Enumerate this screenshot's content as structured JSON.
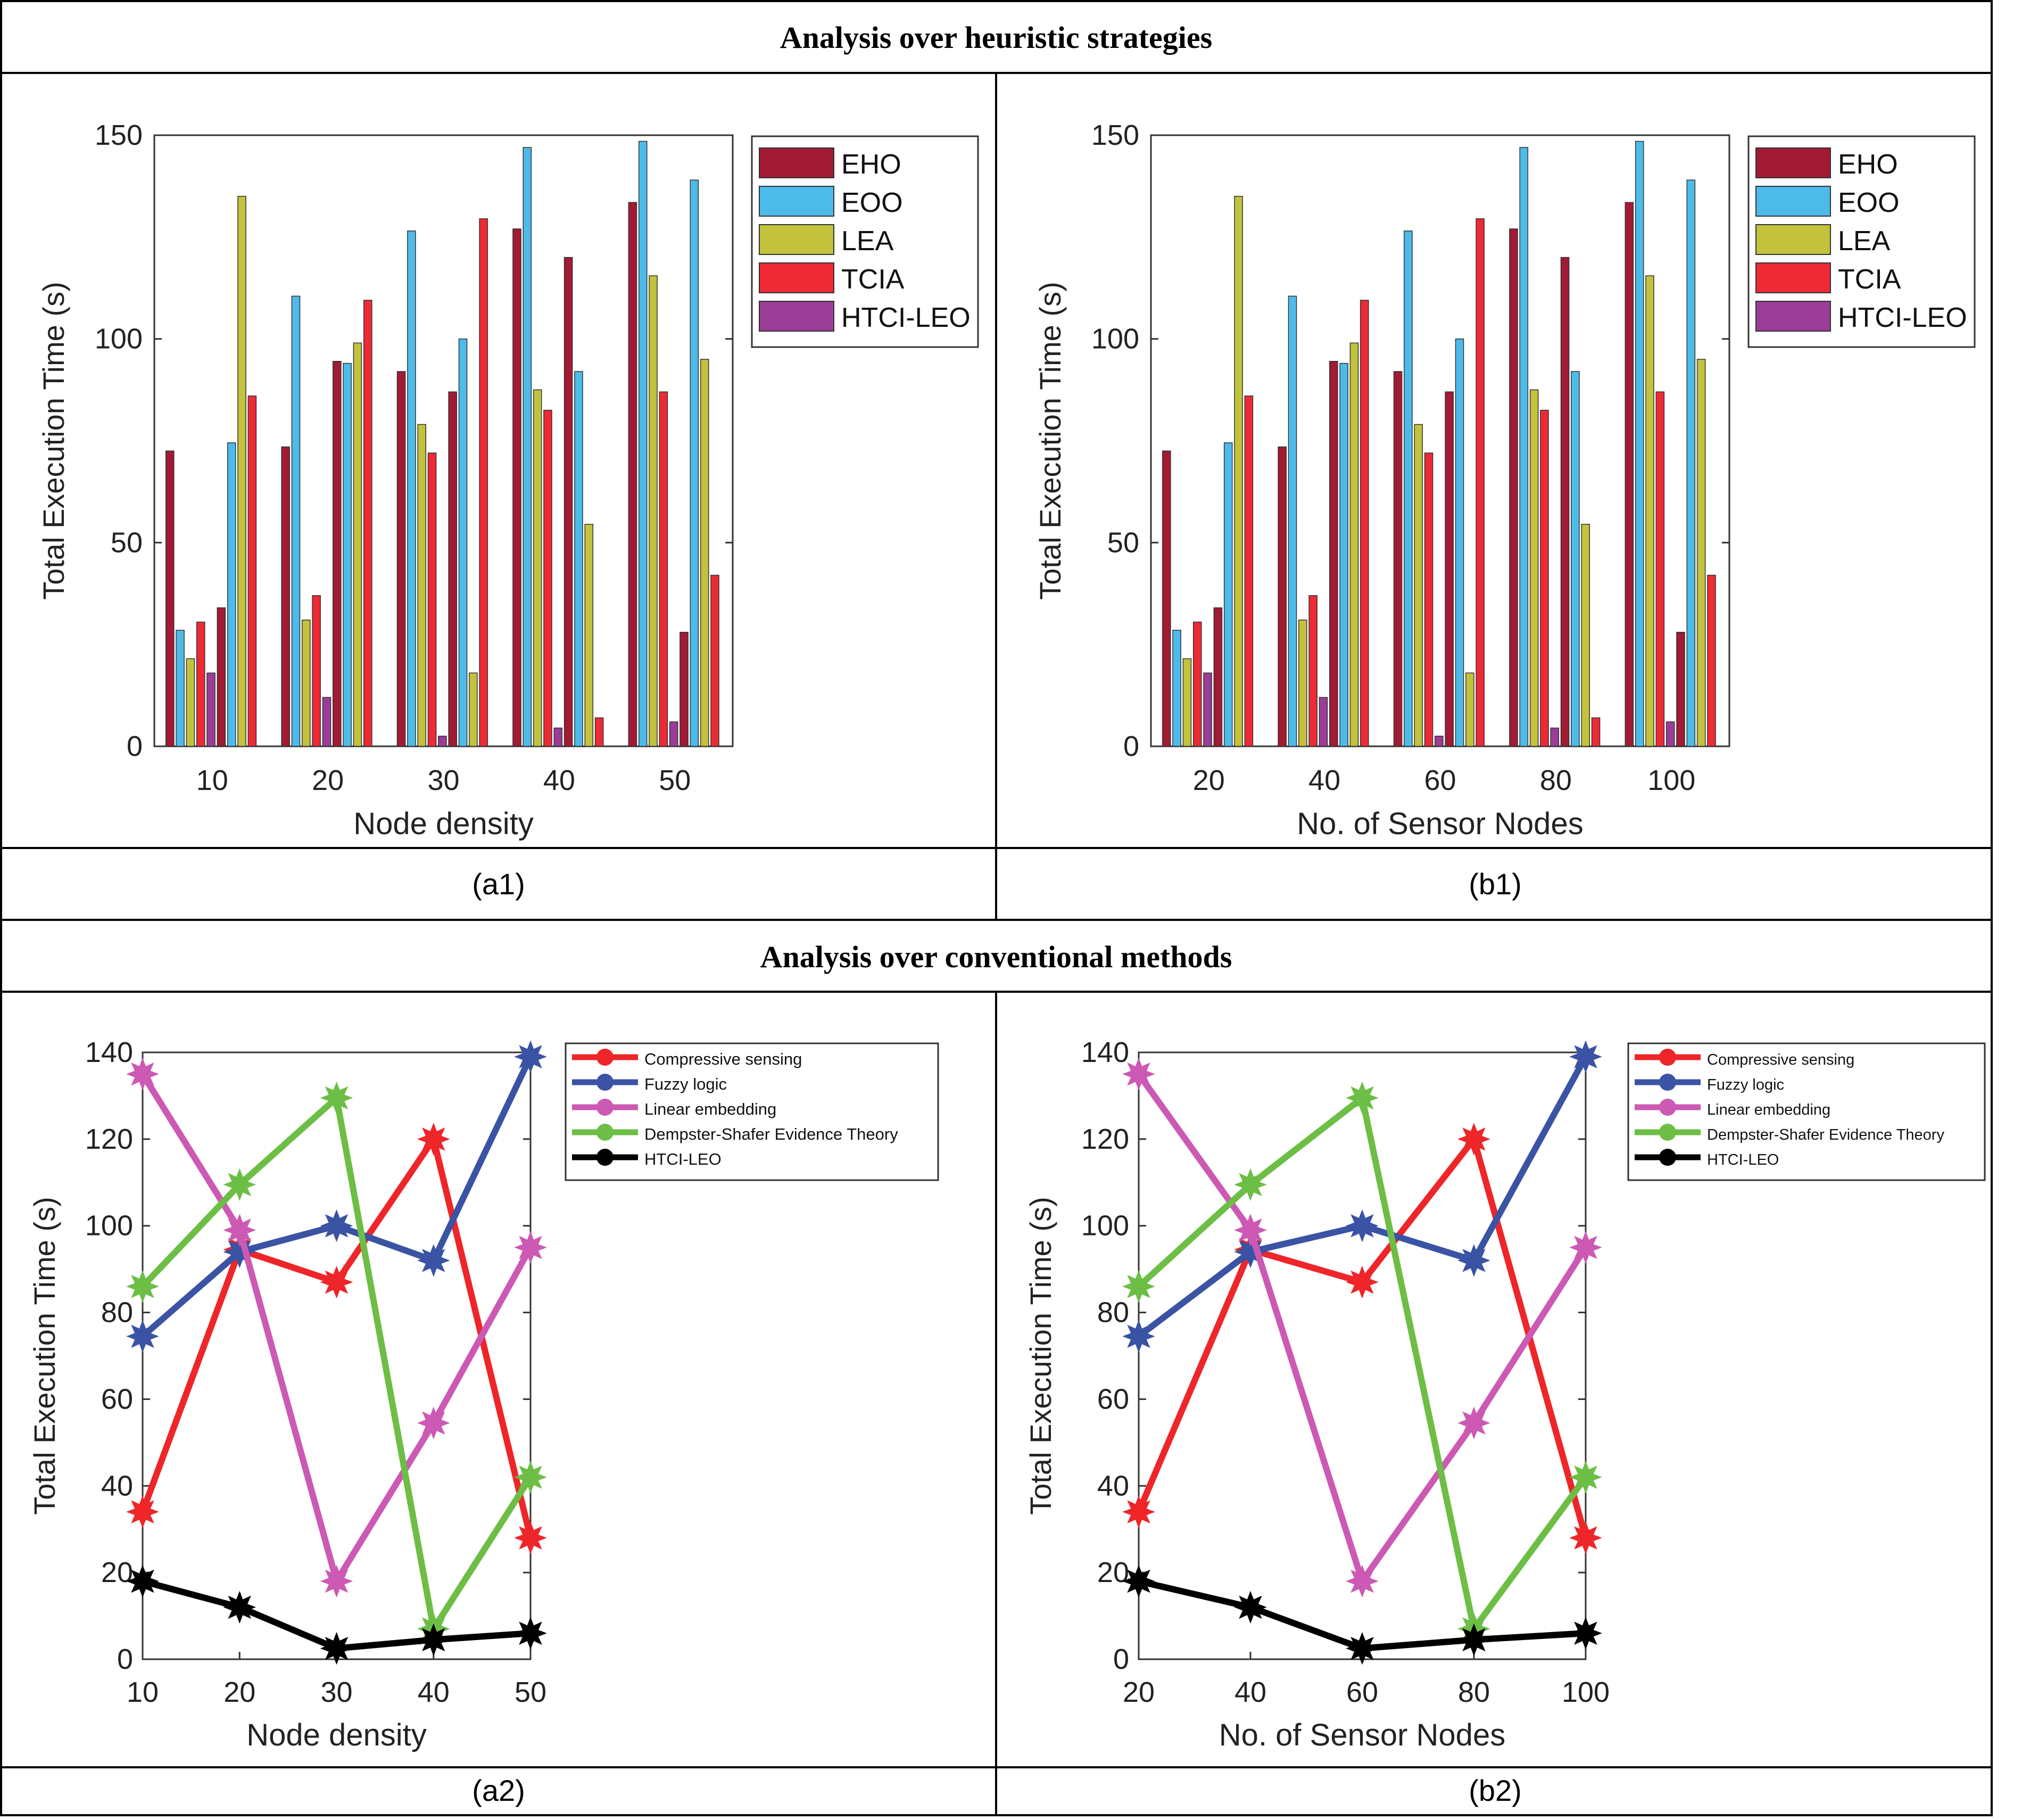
{
  "sections": [
    {
      "title": "Analysis over heuristic strategies"
    },
    {
      "title": "Analysis over conventional methods"
    }
  ],
  "panels": [
    {
      "caption": "(a1)"
    },
    {
      "caption": "(b1)"
    },
    {
      "caption": "(a2)"
    },
    {
      "caption": "(b2)"
    }
  ],
  "chart_data": [
    {
      "type": "bar",
      "panel": "(a1)",
      "xlabel": "Node density",
      "ylabel": "Total Execution Time (s)",
      "ylim": [
        0,
        150
      ],
      "yticks": [
        0,
        50,
        100,
        150
      ],
      "categories": [
        "10",
        "20",
        "30",
        "40",
        "50"
      ],
      "legend_position": "top-right",
      "series": [
        {
          "name": "EHO",
          "color": "#a21a33",
          "values": [
            72.5,
            73.5,
            92,
            127,
            133.5
          ]
        },
        {
          "name": "EOO",
          "color": "#4dbbe9",
          "values": [
            28.5,
            110.5,
            126.5,
            147,
            148.5
          ]
        },
        {
          "name": "LEA",
          "color": "#c2c23d",
          "values": [
            21.5,
            31,
            79,
            87.5,
            115.5
          ]
        },
        {
          "name": "TCIA",
          "color": "#ee2a35",
          "values": [
            30.5,
            37,
            72,
            82.5,
            87
          ]
        },
        {
          "name": "HTCI-LEO",
          "color": "#9b3d96",
          "values": [
            18,
            12,
            2.5,
            4.5,
            6
          ]
        },
        {
          "name": "",
          "color": "#a21a33",
          "values": [
            34,
            94.5,
            87,
            120,
            28
          ]
        },
        {
          "name": "",
          "color": "#4dbbe9",
          "values": [
            74.5,
            94,
            100,
            92,
            139
          ]
        },
        {
          "name": "",
          "color": "#c2c23d",
          "values": [
            135,
            99,
            18,
            54.5,
            95
          ]
        },
        {
          "name": "",
          "color": "#ee2a35",
          "values": [
            86,
            109.5,
            129.5,
            7,
            42
          ]
        }
      ]
    },
    {
      "type": "bar",
      "panel": "(b1)",
      "xlabel": "No. of Sensor Nodes",
      "ylabel": "Total Execution Time (s)",
      "ylim": [
        0,
        150
      ],
      "yticks": [
        0,
        50,
        100,
        150
      ],
      "categories": [
        "20",
        "40",
        "60",
        "80",
        "100"
      ],
      "legend_position": "top-right",
      "series": [
        {
          "name": "EHO",
          "color": "#a21a33",
          "values": [
            72.5,
            73.5,
            92,
            127,
            133.5
          ]
        },
        {
          "name": "EOO",
          "color": "#4dbbe9",
          "values": [
            28.5,
            110.5,
            126.5,
            147,
            148.5
          ]
        },
        {
          "name": "LEA",
          "color": "#c2c23d",
          "values": [
            21.5,
            31,
            79,
            87.5,
            115.5
          ]
        },
        {
          "name": "TCIA",
          "color": "#ee2a35",
          "values": [
            30.5,
            37,
            72,
            82.5,
            87
          ]
        },
        {
          "name": "HTCI-LEO",
          "color": "#9b3d96",
          "values": [
            18,
            12,
            2.5,
            4.5,
            6
          ]
        },
        {
          "name": "",
          "color": "#a21a33",
          "values": [
            34,
            94.5,
            87,
            120,
            28
          ]
        },
        {
          "name": "",
          "color": "#4dbbe9",
          "values": [
            74.5,
            94,
            100,
            92,
            139
          ]
        },
        {
          "name": "",
          "color": "#c2c23d",
          "values": [
            135,
            99,
            18,
            54.5,
            95
          ]
        },
        {
          "name": "",
          "color": "#ee2a35",
          "values": [
            86,
            109.5,
            129.5,
            7,
            42
          ]
        }
      ]
    },
    {
      "type": "line",
      "panel": "(a2)",
      "xlabel": "Node density",
      "ylabel": "Total Execution Time (s)",
      "x": [
        10,
        20,
        30,
        40,
        50
      ],
      "xlim": [
        10,
        50
      ],
      "ylim": [
        0,
        140
      ],
      "yticks": [
        0,
        20,
        40,
        60,
        80,
        100,
        120,
        140
      ],
      "legend_position": "top-right",
      "series": [
        {
          "name": "Compressive sensing",
          "color": "#ee2529",
          "values": [
            34,
            94.5,
            87,
            120,
            28
          ]
        },
        {
          "name": "Fuzzy logic",
          "color": "#3a53a4",
          "values": [
            74.5,
            94,
            100,
            92,
            139
          ]
        },
        {
          "name": "Linear embedding",
          "color": "#cc59b3",
          "values": [
            135,
            99,
            18,
            54.5,
            95
          ]
        },
        {
          "name": "Dempster-Shafer Evidence Theory",
          "color": "#6cbe45",
          "values": [
            86,
            109.5,
            129.5,
            7,
            42
          ]
        },
        {
          "name": "HTCI-LEO",
          "color": "#000000",
          "values": [
            18,
            12,
            2.5,
            4.5,
            6
          ]
        }
      ]
    },
    {
      "type": "line",
      "panel": "(b2)",
      "xlabel": "No. of Sensor Nodes",
      "ylabel": "Total Execution Time (s)",
      "x": [
        20,
        40,
        60,
        80,
        100
      ],
      "xlim": [
        20,
        100
      ],
      "ylim": [
        0,
        140
      ],
      "yticks": [
        0,
        20,
        40,
        60,
        80,
        100,
        120,
        140
      ],
      "legend_position": "top-right",
      "series": [
        {
          "name": "Compressive sensing",
          "color": "#ee2529",
          "values": [
            34,
            94.5,
            87,
            120,
            28
          ]
        },
        {
          "name": "Fuzzy logic",
          "color": "#3a53a4",
          "values": [
            74.5,
            94,
            100,
            92,
            139
          ]
        },
        {
          "name": "Linear embedding",
          "color": "#cc59b3",
          "values": [
            135,
            99,
            18,
            54.5,
            95
          ]
        },
        {
          "name": "Dempster-Shafer Evidence Theory",
          "color": "#6cbe45",
          "values": [
            86,
            109.5,
            129.5,
            7,
            42
          ]
        },
        {
          "name": "HTCI-LEO",
          "color": "#000000",
          "values": [
            18,
            12,
            2.5,
            4.5,
            6
          ]
        }
      ]
    }
  ]
}
